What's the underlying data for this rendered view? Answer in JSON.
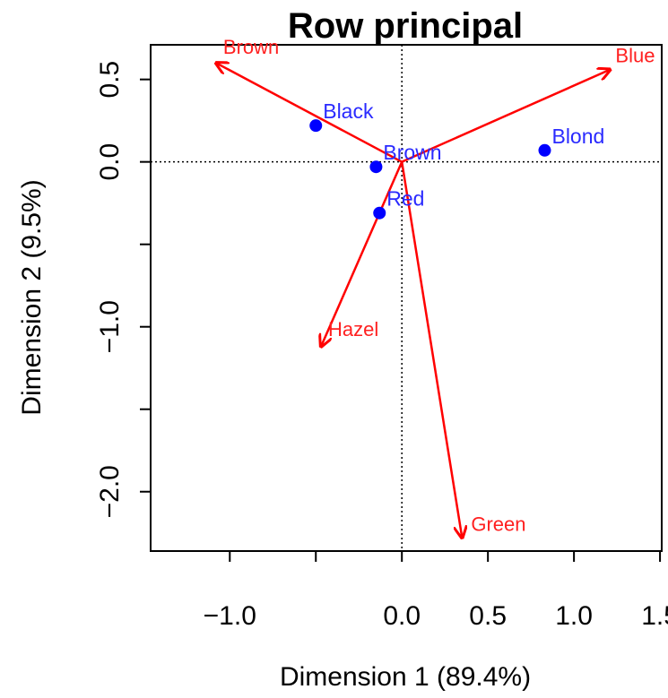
{
  "chart_data": {
    "type": "scatter",
    "title": "Row principal",
    "xlabel": "Dimension 1 (89.4%)",
    "ylabel": "Dimension 2 (9.5%)",
    "xlim": [
      -1.46,
      1.51
    ],
    "ylim": [
      -2.36,
      0.71
    ],
    "xticks": [
      {
        "value": -1.0,
        "label": "−1.0"
      },
      {
        "value": -0.5,
        "label": ""
      },
      {
        "value": 0.0,
        "label": "0.0"
      },
      {
        "value": 0.5,
        "label": "0.5"
      },
      {
        "value": 1.0,
        "label": "1.0"
      },
      {
        "value": 1.5,
        "label": "1.5"
      }
    ],
    "yticks": [
      {
        "value": 0.5,
        "label": "0.5"
      },
      {
        "value": 0.0,
        "label": "0.0"
      },
      {
        "value": -0.5,
        "label": ""
      },
      {
        "value": -1.0,
        "label": "−1.0"
      },
      {
        "value": -1.5,
        "label": ""
      },
      {
        "value": -2.0,
        "label": "−2.0"
      }
    ],
    "reference_lines": {
      "x": 0,
      "y": 0,
      "style": "dotted"
    },
    "grid": false,
    "rows": {
      "color": "#0000ff",
      "points": [
        {
          "label": "Black",
          "x": -0.5,
          "y": 0.22
        },
        {
          "label": "Brown",
          "x": -0.15,
          "y": -0.03
        },
        {
          "label": "Red",
          "x": -0.13,
          "y": -0.31
        },
        {
          "label": "Blond",
          "x": 0.83,
          "y": 0.07
        }
      ]
    },
    "columns": {
      "color": "#ff0000",
      "arrows": [
        {
          "label": "Brown",
          "x": -1.08,
          "y": 0.6
        },
        {
          "label": "Blue",
          "x": 1.21,
          "y": 0.56
        },
        {
          "label": "Hazel",
          "x": -0.47,
          "y": -1.12
        },
        {
          "label": "Green",
          "x": 0.35,
          "y": -2.28
        }
      ]
    }
  }
}
